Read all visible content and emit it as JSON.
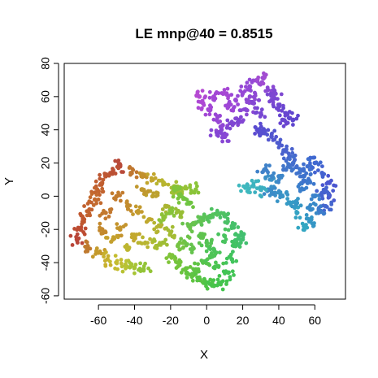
{
  "chart_data": {
    "type": "scatter",
    "title": "LE mnp@40 = 0.8515",
    "xlabel": "X",
    "ylabel": "Y",
    "xlim": [
      -79,
      77
    ],
    "ylim": [
      -62,
      80
    ],
    "x_ticks": [
      -60,
      -40,
      -20,
      0,
      20,
      40,
      60
    ],
    "y_ticks": [
      -60,
      -40,
      -20,
      0,
      20,
      40,
      60,
      80
    ],
    "grid": false,
    "legend": "none",
    "color_scheme": "rainbow (hue varies along the manifold)",
    "clusters": [
      {
        "description": "lower-left manifold (red to yellow to green)",
        "points": [
          [
            -48,
            18,
            "#b84a3a"
          ],
          [
            -52,
            15,
            "#bb5034"
          ],
          [
            -56,
            12,
            "#bd5732"
          ],
          [
            -58,
            8,
            "#c05e30"
          ],
          [
            -60,
            3,
            "#c2642f"
          ],
          [
            -62,
            -2,
            "#c36a2e"
          ],
          [
            -65,
            -8,
            "#c2622f"
          ],
          [
            -68,
            -14,
            "#c0572f"
          ],
          [
            -70,
            -20,
            "#bd4c32"
          ],
          [
            -72,
            -26,
            "#b94638"
          ],
          [
            -66,
            -30,
            "#bf7a2f"
          ],
          [
            -60,
            -34,
            "#c49a2c"
          ],
          [
            -55,
            -38,
            "#c7b02d"
          ],
          [
            -50,
            -40,
            "#c4bc30"
          ],
          [
            -45,
            -42,
            "#b8c233"
          ],
          [
            -40,
            -43,
            "#a7c435"
          ],
          [
            -35,
            -44,
            "#93c437"
          ],
          [
            -42,
            14,
            "#c0772f"
          ],
          [
            -36,
            12,
            "#c2902c"
          ],
          [
            -30,
            10,
            "#c2a62d"
          ],
          [
            -24,
            8,
            "#b8b530"
          ],
          [
            -18,
            6,
            "#a8bd33"
          ],
          [
            -12,
            5,
            "#97c236"
          ],
          [
            -6,
            4,
            "#8ac438"
          ],
          [
            -50,
            0,
            "#c27c2e"
          ],
          [
            -44,
            -6,
            "#c38c2e"
          ],
          [
            -38,
            -10,
            "#c39a2e"
          ],
          [
            -32,
            -14,
            "#bfa82f"
          ],
          [
            -26,
            -18,
            "#b4b431"
          ],
          [
            -20,
            -22,
            "#a4bc34"
          ],
          [
            -48,
            -20,
            "#c4942d"
          ],
          [
            -40,
            -24,
            "#c2a82e"
          ],
          [
            -34,
            -28,
            "#b8b531"
          ],
          [
            -28,
            -30,
            "#a7bd34"
          ],
          [
            -56,
            -10,
            "#c2782e"
          ],
          [
            -58,
            -20,
            "#c3882d"
          ],
          [
            -52,
            -26,
            "#c4a02d"
          ],
          [
            -44,
            -32,
            "#bdb631"
          ],
          [
            -30,
            0,
            "#bca12f"
          ],
          [
            -22,
            -6,
            "#aab533"
          ],
          [
            -14,
            -10,
            "#98be36"
          ],
          [
            -36,
            4,
            "#c0982e"
          ],
          [
            -16,
            2,
            "#a0bf35"
          ],
          [
            -24,
            -28,
            "#9fbd35"
          ]
        ]
      },
      {
        "description": "central-lower manifold (green)",
        "points": [
          [
            -20,
            -36,
            "#80c43a"
          ],
          [
            -16,
            -40,
            "#74c43c"
          ],
          [
            -12,
            -44,
            "#6ac43e"
          ],
          [
            -8,
            -48,
            "#60c440"
          ],
          [
            -4,
            -50,
            "#58c443"
          ],
          [
            0,
            -52,
            "#4fc446"
          ],
          [
            4,
            -54,
            "#48c44a"
          ],
          [
            8,
            -52,
            "#44c44e"
          ],
          [
            12,
            -46,
            "#42c455"
          ],
          [
            14,
            -38,
            "#42c45c"
          ],
          [
            16,
            -30,
            "#42c263"
          ],
          [
            18,
            -24,
            "#43c16a"
          ],
          [
            14,
            -18,
            "#47c06a"
          ],
          [
            10,
            -12,
            "#4bc066"
          ],
          [
            6,
            -10,
            "#4fc162"
          ],
          [
            2,
            -12,
            "#55c35c"
          ],
          [
            -2,
            -14,
            "#5bc357"
          ],
          [
            -6,
            -16,
            "#62c352"
          ],
          [
            -10,
            -18,
            "#6ac34c"
          ],
          [
            -4,
            -24,
            "#5fc34f"
          ],
          [
            0,
            -28,
            "#55c355"
          ],
          [
            4,
            -32,
            "#4cc45a"
          ],
          [
            -8,
            -32,
            "#64c34c"
          ],
          [
            -12,
            -28,
            "#6dc348"
          ],
          [
            -16,
            -30,
            "#76c343"
          ],
          [
            -2,
            -40,
            "#57c44c"
          ],
          [
            6,
            -42,
            "#4bc452"
          ],
          [
            10,
            -24,
            "#4ac35f"
          ],
          [
            -18,
            4,
            "#82c43a"
          ],
          [
            -14,
            0,
            "#78c43d"
          ],
          [
            -10,
            -4,
            "#6ec441"
          ],
          [
            -20,
            -10,
            "#86c33a"
          ],
          [
            -24,
            -14,
            "#8ec238"
          ],
          [
            20,
            -26,
            "#43bf70"
          ],
          [
            2,
            -36,
            "#4fc457"
          ],
          [
            -6,
            -44,
            "#5fc445"
          ]
        ]
      },
      {
        "description": "upper-right manifold (magenta to purple to blue)",
        "points": [
          [
            -4,
            60,
            "#b54ad2"
          ],
          [
            -2,
            56,
            "#ad48d4"
          ],
          [
            2,
            52,
            "#a247d5"
          ],
          [
            6,
            48,
            "#9846d5"
          ],
          [
            8,
            42,
            "#8f46d5"
          ],
          [
            10,
            36,
            "#8847d4"
          ],
          [
            12,
            54,
            "#9e47d6"
          ],
          [
            16,
            58,
            "#9a47d6"
          ],
          [
            20,
            62,
            "#9648d6"
          ],
          [
            24,
            66,
            "#9448d6"
          ],
          [
            28,
            70,
            "#9c4bd3"
          ],
          [
            32,
            72,
            "#a24dd1"
          ],
          [
            34,
            64,
            "#8a48d3"
          ],
          [
            36,
            58,
            "#7a47d2"
          ],
          [
            40,
            54,
            "#6f46d1"
          ],
          [
            44,
            50,
            "#6646d0"
          ],
          [
            48,
            46,
            "#5f46cf"
          ],
          [
            22,
            52,
            "#8a47d4"
          ],
          [
            18,
            46,
            "#8347d3"
          ],
          [
            14,
            44,
            "#7e47d2"
          ],
          [
            26,
            56,
            "#8447d3"
          ],
          [
            30,
            50,
            "#7747d2"
          ],
          [
            4,
            60,
            "#a348d5"
          ],
          [
            24,
            60,
            "#8f48d4"
          ],
          [
            38,
            62,
            "#7e48d1"
          ],
          [
            10,
            62,
            "#a648d4"
          ],
          [
            6,
            38,
            "#8446d4"
          ],
          [
            42,
            46,
            "#6a46d0"
          ]
        ]
      },
      {
        "description": "right manifold (blue to teal)",
        "points": [
          [
            28,
            40,
            "#5a4ad0"
          ],
          [
            32,
            38,
            "#5650d0"
          ],
          [
            36,
            36,
            "#5256cf"
          ],
          [
            40,
            32,
            "#4e5cce"
          ],
          [
            44,
            28,
            "#4a62cd"
          ],
          [
            46,
            24,
            "#4768cd"
          ],
          [
            48,
            20,
            "#446ecd"
          ],
          [
            52,
            16,
            "#4174cd"
          ],
          [
            56,
            18,
            "#3f70cf"
          ],
          [
            60,
            20,
            "#3f68d0"
          ],
          [
            64,
            14,
            "#4262d0"
          ],
          [
            68,
            8,
            "#4a56d0"
          ],
          [
            68,
            0,
            "#4a5acf"
          ],
          [
            66,
            -6,
            "#4566ce"
          ],
          [
            62,
            -10,
            "#3c7ccb"
          ],
          [
            58,
            -14,
            "#3596c5"
          ],
          [
            54,
            -18,
            "#33a6c2"
          ],
          [
            50,
            -10,
            "#34a2c3"
          ],
          [
            46,
            -4,
            "#369ac5"
          ],
          [
            42,
            0,
            "#3894c6"
          ],
          [
            38,
            2,
            "#3a8fc7"
          ],
          [
            34,
            4,
            "#3b8ac8"
          ],
          [
            30,
            4,
            "#3dafc0"
          ],
          [
            26,
            6,
            "#3db4bf"
          ],
          [
            22,
            6,
            "#3fb8be"
          ],
          [
            36,
            10,
            "#3b90c7"
          ],
          [
            40,
            12,
            "#3e86c9"
          ],
          [
            52,
            4,
            "#3a7ecb"
          ],
          [
            56,
            8,
            "#3c78cc"
          ],
          [
            60,
            0,
            "#3b82ca"
          ],
          [
            50,
            -4,
            "#3696c5"
          ],
          [
            58,
            -8,
            "#3889c8"
          ],
          [
            44,
            16,
            "#4276ca"
          ],
          [
            32,
            16,
            "#4082c9"
          ],
          [
            64,
            2,
            "#4462ce"
          ],
          [
            54,
            12,
            "#3e72cc"
          ]
        ]
      }
    ]
  }
}
